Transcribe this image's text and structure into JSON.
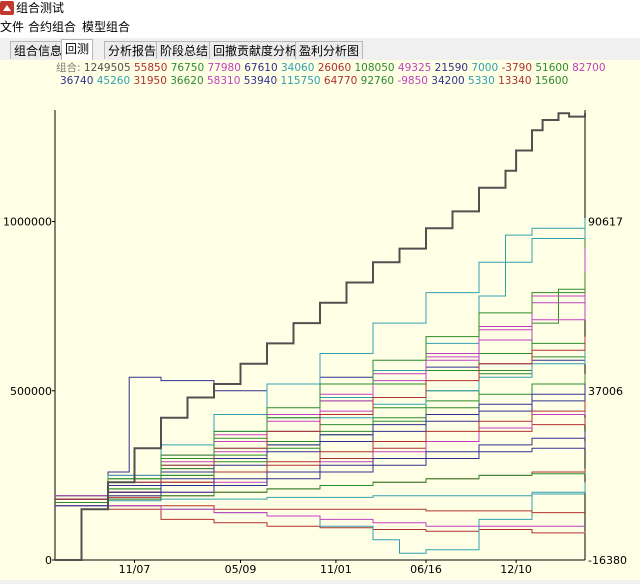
{
  "window": {
    "title": "组合测试"
  },
  "menu": [
    "文件",
    "合约组合",
    "模型组合"
  ],
  "tabs": [
    {
      "label": "组合信息",
      "active": false
    },
    {
      "label": "回测",
      "active": true
    },
    {
      "label": "分析报告",
      "active": false
    },
    {
      "label": "阶段总结",
      "active": false
    },
    {
      "label": "回撤贡献度分析",
      "active": false
    },
    {
      "label": "盈利分析图",
      "active": false
    }
  ],
  "legend": {
    "prefix": "组合:",
    "items": [
      {
        "text": "1249505",
        "color": "#505050"
      },
      {
        "text": "55850",
        "color": "#b03030"
      },
      {
        "text": "76750",
        "color": "#2e8b2e"
      },
      {
        "text": "77980",
        "color": "#c040c0"
      },
      {
        "text": "67610",
        "color": "#303090"
      },
      {
        "text": "34060",
        "color": "#30a0b0"
      },
      {
        "text": "26060",
        "color": "#b03030"
      },
      {
        "text": "108050",
        "color": "#2e8b2e"
      },
      {
        "text": "49325",
        "color": "#c040c0"
      },
      {
        "text": "21590",
        "color": "#303090"
      },
      {
        "text": "7000",
        "color": "#30a0b0"
      },
      {
        "text": "-3790",
        "color": "#b03030"
      },
      {
        "text": "51600",
        "color": "#2e8b2e"
      },
      {
        "text": "82700",
        "color": "#c040c0"
      },
      {
        "text": "36740",
        "color": "#303090"
      },
      {
        "text": "45260",
        "color": "#30a0b0"
      },
      {
        "text": "31950",
        "color": "#b03030"
      },
      {
        "text": "36620",
        "color": "#2e8b2e"
      },
      {
        "text": "58310",
        "color": "#c040c0"
      },
      {
        "text": "53940",
        "color": "#303090"
      },
      {
        "text": "115750",
        "color": "#30a0b0"
      },
      {
        "text": "64770",
        "color": "#b03030"
      },
      {
        "text": "92760",
        "color": "#2e8b2e"
      },
      {
        "text": "-9850",
        "color": "#c040c0"
      },
      {
        "text": "34200",
        "color": "#303090"
      },
      {
        "text": "5330",
        "color": "#30a0b0"
      },
      {
        "text": "13340",
        "color": "#b03030"
      },
      {
        "text": "15600",
        "color": "#2e8b2e"
      }
    ]
  },
  "chart_data": {
    "type": "line",
    "y_ticks_left": [
      "1000000",
      "500000",
      "0"
    ],
    "y_ticks_right": [
      "90617",
      "37006",
      "-16380"
    ],
    "x_ticks": [
      "11/07",
      "05/09",
      "11/01",
      "06/16",
      "12/10"
    ],
    "ylim": [
      0,
      1300000
    ],
    "x_range": [
      0,
      100
    ],
    "series": [
      {
        "color": "#505050",
        "bold": true,
        "x": [
          0,
          5,
          10,
          15,
          20,
          25,
          30,
          35,
          40,
          45,
          50,
          55,
          60,
          65,
          70,
          75,
          80,
          85,
          87,
          90,
          92,
          95,
          97,
          100
        ],
        "y": [
          0,
          150000,
          230000,
          330000,
          420000,
          480000,
          520000,
          580000,
          640000,
          700000,
          760000,
          820000,
          880000,
          920000,
          980000,
          1030000,
          1100000,
          1150000,
          1210000,
          1270000,
          1300000,
          1320000,
          1310000,
          1320000
        ]
      },
      {
        "color": "#b03030",
        "x": [
          0,
          10,
          20,
          30,
          40,
          50,
          60,
          70,
          80,
          90,
          100
        ],
        "y": [
          180000,
          200000,
          230000,
          260000,
          280000,
          300000,
          330000,
          350000,
          380000,
          400000,
          420000
        ]
      },
      {
        "color": "#2e8b2e",
        "x": [
          0,
          10,
          20,
          30,
          40,
          50,
          60,
          70,
          80,
          90,
          95,
          100
        ],
        "y": [
          170000,
          210000,
          250000,
          300000,
          340000,
          380000,
          420000,
          470000,
          560000,
          700000,
          800000,
          1000000
        ]
      },
      {
        "color": "#c040c0",
        "x": [
          0,
          10,
          20,
          30,
          40,
          50,
          60,
          70,
          80,
          90,
          100
        ],
        "y": [
          180000,
          220000,
          270000,
          320000,
          380000,
          440000,
          520000,
          600000,
          690000,
          780000,
          920000
        ]
      },
      {
        "color": "#303090",
        "x": [
          0,
          10,
          14,
          20,
          30,
          40,
          50,
          60,
          70,
          80,
          90,
          100
        ],
        "y": [
          190000,
          260000,
          540000,
          530000,
          500000,
          520000,
          540000,
          560000,
          570000,
          580000,
          590000,
          600000
        ]
      },
      {
        "color": "#30a0b0",
        "x": [
          0,
          10,
          20,
          30,
          40,
          50,
          60,
          70,
          80,
          85,
          90,
          100
        ],
        "y": [
          160000,
          220000,
          300000,
          380000,
          420000,
          480000,
          560000,
          640000,
          780000,
          960000,
          980000,
          1010000
        ]
      },
      {
        "color": "#b03030",
        "x": [
          0,
          10,
          20,
          30,
          40,
          50,
          60,
          70,
          80,
          90,
          100
        ],
        "y": [
          170000,
          150000,
          120000,
          110000,
          100000,
          95000,
          90000,
          85000,
          90000,
          80000,
          85000
        ]
      },
      {
        "color": "#2e8b2e",
        "x": [
          0,
          10,
          20,
          30,
          40,
          50,
          60,
          70,
          80,
          90,
          100
        ],
        "y": [
          190000,
          240000,
          300000,
          360000,
          420000,
          470000,
          520000,
          560000,
          610000,
          640000,
          660000
        ]
      },
      {
        "color": "#c040c0",
        "x": [
          0,
          10,
          20,
          30,
          40,
          50,
          60,
          70,
          80,
          90,
          100
        ],
        "y": [
          160000,
          180000,
          200000,
          230000,
          260000,
          290000,
          320000,
          350000,
          390000,
          430000,
          470000
        ]
      },
      {
        "color": "#303090",
        "x": [
          0,
          10,
          20,
          30,
          40,
          50,
          60,
          70,
          80,
          90,
          100
        ],
        "y": [
          180000,
          190000,
          200000,
          220000,
          240000,
          260000,
          280000,
          300000,
          320000,
          330000,
          350000
        ]
      },
      {
        "color": "#30a0b0",
        "x": [
          0,
          10,
          20,
          30,
          40,
          50,
          60,
          65,
          70,
          80,
          90,
          100
        ],
        "y": [
          170000,
          160000,
          150000,
          140000,
          130000,
          100000,
          60000,
          20000,
          30000,
          120000,
          200000,
          230000
        ]
      },
      {
        "color": "#b03030",
        "x": [
          0,
          10,
          20,
          30,
          40,
          50,
          60,
          70,
          80,
          90,
          100
        ],
        "y": [
          170000,
          160000,
          160000,
          150000,
          150000,
          150000,
          150000,
          145000,
          145000,
          140000,
          140000
        ]
      },
      {
        "color": "#2e8b2e",
        "x": [
          0,
          10,
          20,
          30,
          40,
          50,
          60,
          70,
          80,
          90,
          100
        ],
        "y": [
          180000,
          220000,
          270000,
          310000,
          350000,
          400000,
          450000,
          500000,
          550000,
          600000,
          650000
        ]
      },
      {
        "color": "#c040c0",
        "x": [
          0,
          10,
          20,
          30,
          40,
          50,
          60,
          70,
          80,
          90,
          100
        ],
        "y": [
          190000,
          250000,
          310000,
          370000,
          430000,
          490000,
          550000,
          610000,
          680000,
          760000,
          860000
        ]
      },
      {
        "color": "#303090",
        "x": [
          0,
          10,
          20,
          30,
          40,
          50,
          60,
          70,
          80,
          90,
          100
        ],
        "y": [
          160000,
          200000,
          240000,
          280000,
          320000,
          350000,
          380000,
          410000,
          440000,
          470000,
          500000
        ]
      },
      {
        "color": "#30a0b0",
        "x": [
          0,
          10,
          20,
          30,
          40,
          50,
          60,
          70,
          80,
          90,
          100
        ],
        "y": [
          180000,
          230000,
          280000,
          330000,
          380000,
          420000,
          460000,
          500000,
          540000,
          580000,
          620000
        ]
      },
      {
        "color": "#b03030",
        "x": [
          0,
          10,
          20,
          30,
          40,
          50,
          60,
          70,
          80,
          90,
          100
        ],
        "y": [
          170000,
          200000,
          230000,
          260000,
          290000,
          320000,
          350000,
          380000,
          410000,
          440000,
          470000
        ]
      },
      {
        "color": "#2e8b2e",
        "x": [
          0,
          10,
          20,
          30,
          40,
          50,
          60,
          70,
          80,
          90,
          100
        ],
        "y": [
          170000,
          210000,
          250000,
          290000,
          330000,
          370000,
          410000,
          450000,
          490000,
          520000,
          550000
        ]
      },
      {
        "color": "#c040c0",
        "x": [
          0,
          10,
          20,
          30,
          40,
          50,
          60,
          70,
          80,
          90,
          100
        ],
        "y": [
          180000,
          230000,
          290000,
          350000,
          410000,
          470000,
          530000,
          590000,
          650000,
          710000,
          780000
        ]
      },
      {
        "color": "#303090",
        "x": [
          0,
          10,
          20,
          30,
          40,
          50,
          60,
          70,
          80,
          90,
          100
        ],
        "y": [
          180000,
          220000,
          260000,
          300000,
          340000,
          370000,
          400000,
          430000,
          460000,
          490000,
          520000
        ]
      },
      {
        "color": "#30a0b0",
        "x": [
          0,
          10,
          20,
          30,
          40,
          50,
          60,
          70,
          80,
          90,
          100
        ],
        "y": [
          170000,
          250000,
          340000,
          430000,
          520000,
          610000,
          700000,
          790000,
          880000,
          950000,
          1010000
        ]
      },
      {
        "color": "#b03030",
        "x": [
          0,
          10,
          20,
          30,
          40,
          50,
          60,
          70,
          80,
          90,
          100
        ],
        "y": [
          180000,
          230000,
          280000,
          330000,
          380000,
          430000,
          480000,
          530000,
          580000,
          620000,
          660000
        ]
      },
      {
        "color": "#2e8b2e",
        "x": [
          0,
          10,
          20,
          30,
          40,
          50,
          60,
          70,
          80,
          90,
          100
        ],
        "y": [
          170000,
          240000,
          310000,
          380000,
          450000,
          520000,
          590000,
          660000,
          730000,
          790000,
          850000
        ]
      },
      {
        "color": "#c040c0",
        "x": [
          0,
          10,
          20,
          30,
          40,
          50,
          60,
          70,
          80,
          90,
          100
        ],
        "y": [
          170000,
          160000,
          150000,
          140000,
          130000,
          120000,
          110000,
          100000,
          100000,
          100000,
          100000
        ]
      },
      {
        "color": "#303090",
        "x": [
          0,
          10,
          20,
          30,
          40,
          50,
          60,
          70,
          80,
          90,
          100
        ],
        "y": [
          180000,
          200000,
          220000,
          240000,
          260000,
          280000,
          300000,
          320000,
          340000,
          360000,
          380000
        ]
      },
      {
        "color": "#30a0b0",
        "x": [
          0,
          10,
          20,
          30,
          40,
          50,
          60,
          70,
          80,
          90,
          100
        ],
        "y": [
          170000,
          175000,
          180000,
          180000,
          185000,
          185000,
          190000,
          190000,
          190000,
          195000,
          195000
        ]
      },
      {
        "color": "#b03030",
        "x": [
          0,
          10,
          20,
          30,
          40,
          50,
          60,
          70,
          80,
          90,
          100
        ],
        "y": [
          180000,
          185000,
          190000,
          200000,
          210000,
          220000,
          230000,
          240000,
          250000,
          260000,
          270000
        ]
      },
      {
        "color": "#2e8b2e",
        "x": [
          0,
          10,
          20,
          30,
          40,
          50,
          60,
          70,
          80,
          90,
          100
        ],
        "y": [
          170000,
          180000,
          190000,
          200000,
          210000,
          220000,
          230000,
          240000,
          250000,
          255000,
          260000
        ]
      }
    ]
  }
}
